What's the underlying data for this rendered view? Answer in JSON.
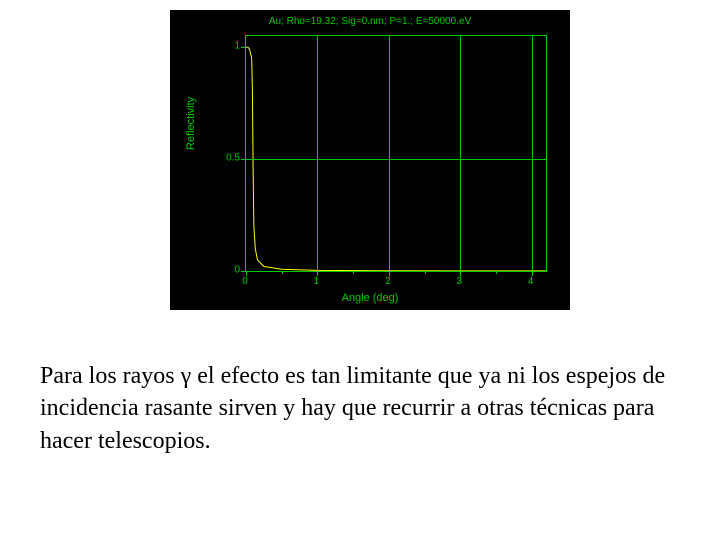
{
  "chart": {
    "type": "line",
    "title": "Au; Rho=19.32; Sig=0.nm; P=1.; E=50000.eV",
    "title_fontsize": 10,
    "title_color": "#00cc00",
    "background_color": "#000000",
    "grid_color": "#00cc00",
    "border_color": "#00cc00",
    "curve_color": "#ffff00",
    "line_width": 1,
    "x_axis": {
      "label": "Angle (deg)",
      "label_fontsize": 11,
      "label_color": "#00cc00",
      "xlim": [
        0,
        4.2
      ],
      "major_ticks": [
        0,
        1,
        2,
        3,
        4
      ],
      "minor_tick_count_between": 1,
      "grid_lines_at": [
        1,
        2,
        3,
        4
      ]
    },
    "y_axis": {
      "label": "Reflectivity",
      "label_fontsize": 11,
      "label_color": "#00cc00",
      "ylim": [
        0,
        1.05
      ],
      "major_ticks": [
        0,
        0.5,
        1
      ],
      "tick_labels": [
        "0",
        "0.5",
        "1"
      ],
      "grid_lines_at": [
        0.5
      ]
    },
    "data_points": [
      {
        "x": 0.0,
        "y": 1.0
      },
      {
        "x": 0.03,
        "y": 1.0
      },
      {
        "x": 0.05,
        "y": 0.99
      },
      {
        "x": 0.08,
        "y": 0.95
      },
      {
        "x": 0.09,
        "y": 0.8
      },
      {
        "x": 0.1,
        "y": 0.45
      },
      {
        "x": 0.11,
        "y": 0.2
      },
      {
        "x": 0.13,
        "y": 0.1
      },
      {
        "x": 0.16,
        "y": 0.05
      },
      {
        "x": 0.25,
        "y": 0.02
      },
      {
        "x": 0.5,
        "y": 0.008
      },
      {
        "x": 1.0,
        "y": 0.003
      },
      {
        "x": 2.0,
        "y": 0.001
      },
      {
        "x": 3.0,
        "y": 0.0005
      },
      {
        "x": 4.0,
        "y": 0.0003
      },
      {
        "x": 4.2,
        "y": 0.0003
      }
    ]
  },
  "body_text": "Para los rayos γ el efecto es tan limitante que ya ni los espejos de incidencia rasante sirven y hay que recurrir a otras técnicas para hacer telescopios.",
  "body_fontsize": 24,
  "body_color": "#000000"
}
